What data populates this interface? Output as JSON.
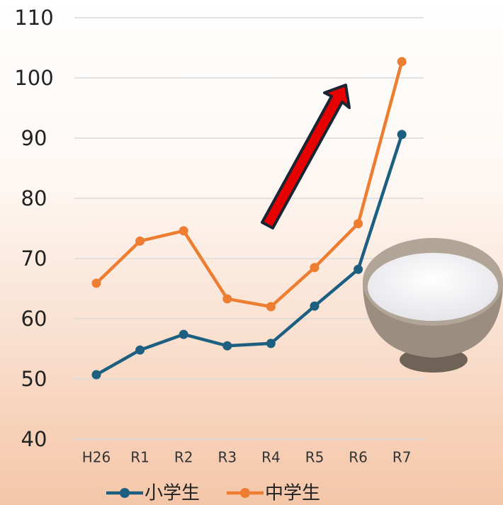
{
  "chart_data": {
    "type": "line",
    "categories": [
      "H26",
      "R1",
      "R2",
      "R3",
      "R4",
      "R5",
      "R6",
      "R7"
    ],
    "series": [
      {
        "name": "小学生",
        "color": "#1c5f80",
        "values": [
          50.7,
          54.8,
          57.4,
          55.5,
          55.9,
          62.1,
          68.2,
          90.6
        ]
      },
      {
        "name": "中学生",
        "color": "#ed7d31",
        "values": [
          65.9,
          72.9,
          74.6,
          63.3,
          62.0,
          68.5,
          75.8,
          102.7
        ]
      }
    ],
    "ylim": [
      40,
      110
    ],
    "yticks": [
      40,
      50,
      60,
      70,
      80,
      90,
      100,
      110
    ],
    "grid": true,
    "legend": "bottom"
  }
}
